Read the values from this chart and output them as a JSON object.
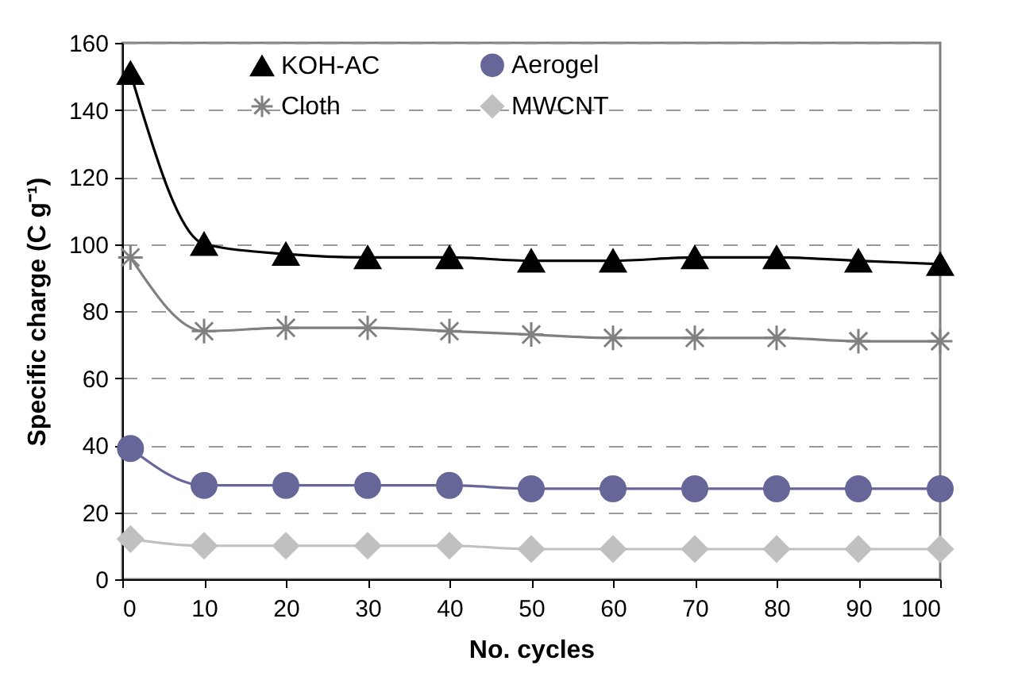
{
  "chart_data": {
    "type": "line",
    "xlabel": "No. cycles",
    "ylabel": "Specific charge (C g⁻¹)",
    "x": [
      1,
      10,
      20,
      30,
      40,
      50,
      60,
      70,
      80,
      90,
      100
    ],
    "series": [
      {
        "name": "KOH-AC",
        "color": "#000000",
        "marker": "triangle",
        "values": [
          151,
          100,
          97,
          96,
          96,
          95,
          95,
          96,
          96,
          95,
          94
        ]
      },
      {
        "name": "Cloth",
        "color": "#808080",
        "marker": "cross",
        "values": [
          96,
          74,
          75,
          75,
          74,
          73,
          72,
          72,
          72,
          71,
          71
        ]
      },
      {
        "name": "Aerogel",
        "color": "#666699",
        "marker": "circle",
        "values": [
          39,
          28,
          28,
          28,
          28,
          27,
          27,
          27,
          27,
          27,
          27
        ]
      },
      {
        "name": "MWCNT",
        "color": "#c0c0c0",
        "marker": "diamond",
        "values": [
          12,
          10,
          10,
          10,
          10,
          9,
          9,
          9,
          9,
          9,
          9
        ]
      }
    ],
    "xlim": [
      0,
      100
    ],
    "xticks": [
      0,
      10,
      20,
      30,
      40,
      50,
      60,
      70,
      80,
      90,
      100
    ],
    "ylim": [
      0,
      160
    ],
    "yticks": [
      0,
      20,
      40,
      60,
      80,
      100,
      120,
      140,
      160
    ],
    "grid": "y",
    "legend": "top",
    "line_style": "solid"
  }
}
